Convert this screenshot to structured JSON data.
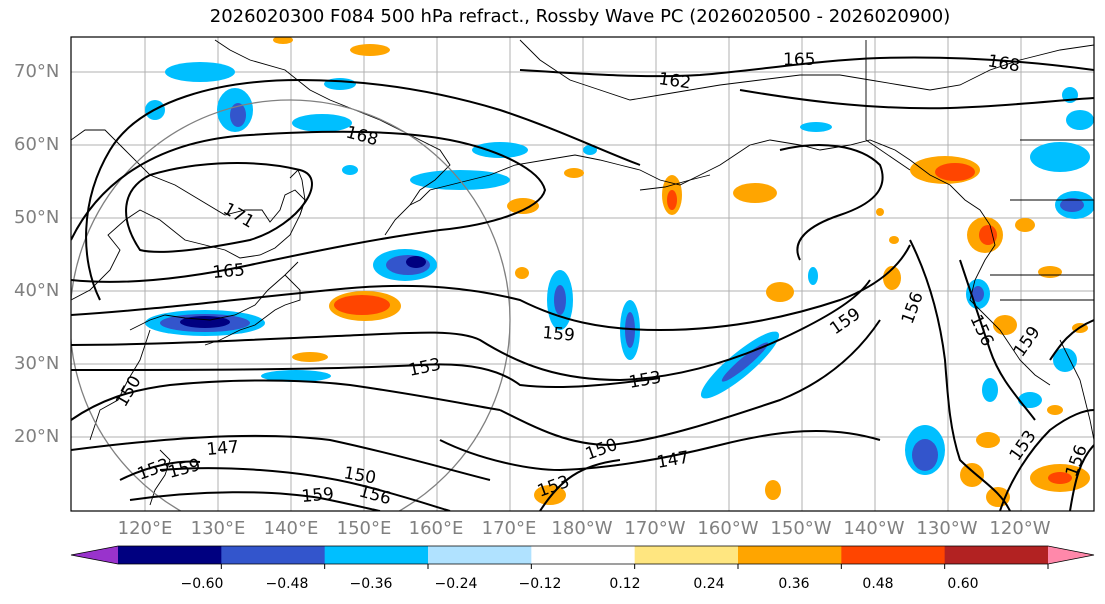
{
  "title": "2026020300 F084 500 hPa refract., Rossby Wave PC (2026020500 - 2026020900)",
  "lat_labels": [
    "70°N",
    "60°N",
    "50°N",
    "40°N",
    "30°N",
    "20°N"
  ],
  "lon_labels": [
    "120°E",
    "130°E",
    "140°E",
    "150°E",
    "160°E",
    "170°E",
    "180°W",
    "170°W",
    "160°W",
    "150°W",
    "140°W",
    "130°W",
    "120°W"
  ],
  "contour_labels": [
    "165",
    "162",
    "168",
    "168",
    "171",
    "165",
    "159",
    "153",
    "159",
    "156",
    "156",
    "159",
    "150",
    "153",
    "150",
    "147",
    "150",
    "147",
    "159",
    "156",
    "153",
    "153",
    "156",
    "159",
    "153"
  ],
  "colorbar": {
    "ticks": [
      "−0.60",
      "−0.48",
      "−0.36",
      "−0.24",
      "−0.12",
      "0.12",
      "0.24",
      "0.36",
      "0.48",
      "0.60"
    ],
    "colors": [
      "#9933cc",
      "#000080",
      "#3355cc",
      "#00bfff",
      "#b0e2ff",
      "#ffffff",
      "#ffe680",
      "#ffa500",
      "#ff4500",
      "#b22222",
      "#ff88aa"
    ]
  },
  "colors": {
    "contour": "#000000",
    "grid": "#b0b0b0",
    "coast": "#000000",
    "circle": "#808080",
    "axis_label": "#808080"
  }
}
